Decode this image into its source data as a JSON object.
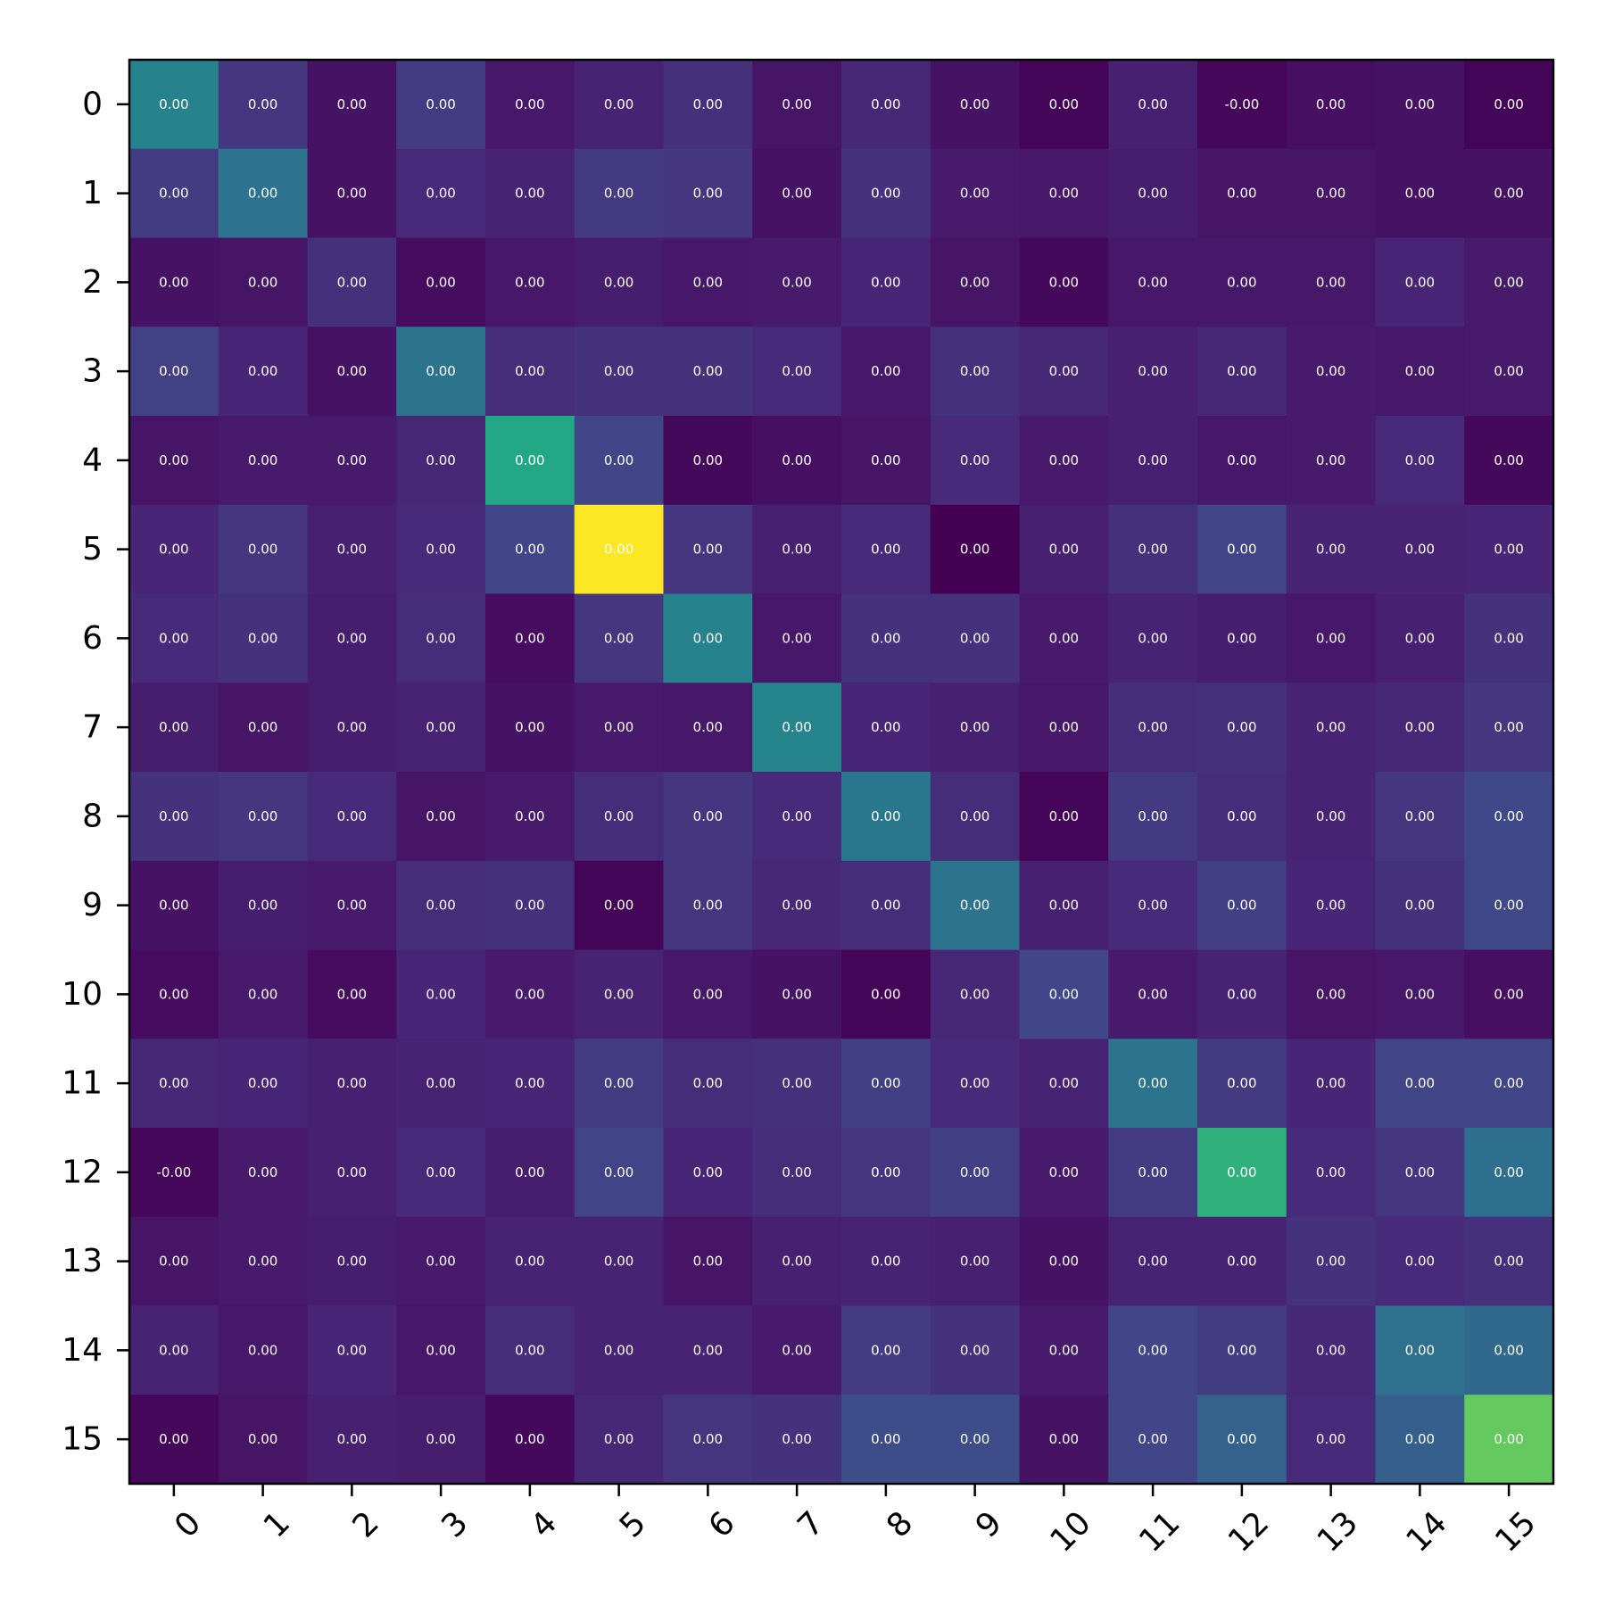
{
  "chart_data": {
    "type": "heatmap",
    "title": "",
    "xlabel": "",
    "ylabel": "",
    "colormap": "viridis",
    "x_categories": [
      "0",
      "1",
      "2",
      "3",
      "4",
      "5",
      "6",
      "7",
      "8",
      "9",
      "10",
      "11",
      "12",
      "13",
      "14",
      "15"
    ],
    "y_categories": [
      "0",
      "1",
      "2",
      "3",
      "4",
      "5",
      "6",
      "7",
      "8",
      "9",
      "10",
      "11",
      "12",
      "13",
      "14",
      "15"
    ],
    "intensity": [
      [
        0.55,
        0.2,
        0.06,
        0.22,
        0.08,
        0.12,
        0.17,
        0.07,
        0.14,
        0.06,
        0.01,
        0.11,
        0.02,
        0.05,
        0.06,
        0.01
      ],
      [
        0.22,
        0.47,
        0.06,
        0.15,
        0.12,
        0.21,
        0.2,
        0.06,
        0.18,
        0.09,
        0.08,
        0.1,
        0.07,
        0.07,
        0.06,
        0.06
      ],
      [
        0.06,
        0.07,
        0.17,
        0.04,
        0.08,
        0.1,
        0.08,
        0.09,
        0.13,
        0.07,
        0.03,
        0.08,
        0.08,
        0.08,
        0.13,
        0.09
      ],
      [
        0.24,
        0.13,
        0.06,
        0.48,
        0.16,
        0.18,
        0.18,
        0.15,
        0.08,
        0.17,
        0.14,
        0.11,
        0.14,
        0.09,
        0.08,
        0.09
      ],
      [
        0.07,
        0.09,
        0.09,
        0.14,
        0.75,
        0.26,
        0.03,
        0.05,
        0.07,
        0.15,
        0.09,
        0.11,
        0.08,
        0.09,
        0.15,
        0.03
      ],
      [
        0.13,
        0.2,
        0.11,
        0.15,
        0.26,
        1.0,
        0.19,
        0.11,
        0.15,
        0.0,
        0.11,
        0.17,
        0.25,
        0.12,
        0.12,
        0.13
      ],
      [
        0.15,
        0.18,
        0.1,
        0.16,
        0.04,
        0.2,
        0.55,
        0.08,
        0.18,
        0.18,
        0.09,
        0.12,
        0.1,
        0.08,
        0.11,
        0.18
      ],
      [
        0.1,
        0.07,
        0.1,
        0.12,
        0.06,
        0.09,
        0.08,
        0.56,
        0.13,
        0.11,
        0.08,
        0.16,
        0.17,
        0.12,
        0.14,
        0.2
      ],
      [
        0.18,
        0.2,
        0.15,
        0.07,
        0.09,
        0.16,
        0.2,
        0.15,
        0.5,
        0.16,
        0.01,
        0.21,
        0.16,
        0.12,
        0.2,
        0.27
      ],
      [
        0.06,
        0.1,
        0.09,
        0.16,
        0.17,
        0.01,
        0.2,
        0.14,
        0.16,
        0.48,
        0.11,
        0.15,
        0.23,
        0.13,
        0.18,
        0.27
      ],
      [
        0.04,
        0.09,
        0.04,
        0.13,
        0.09,
        0.12,
        0.08,
        0.06,
        0.01,
        0.14,
        0.26,
        0.09,
        0.12,
        0.07,
        0.08,
        0.05
      ],
      [
        0.14,
        0.13,
        0.11,
        0.12,
        0.13,
        0.22,
        0.16,
        0.17,
        0.23,
        0.15,
        0.12,
        0.48,
        0.21,
        0.13,
        0.25,
        0.26
      ],
      [
        0.02,
        0.09,
        0.11,
        0.15,
        0.1,
        0.25,
        0.13,
        0.16,
        0.2,
        0.23,
        0.09,
        0.22,
        0.78,
        0.15,
        0.2,
        0.45
      ],
      [
        0.07,
        0.09,
        0.1,
        0.09,
        0.12,
        0.12,
        0.07,
        0.11,
        0.12,
        0.11,
        0.06,
        0.12,
        0.12,
        0.18,
        0.15,
        0.17
      ],
      [
        0.12,
        0.08,
        0.13,
        0.08,
        0.16,
        0.12,
        0.12,
        0.09,
        0.22,
        0.18,
        0.09,
        0.26,
        0.22,
        0.14,
        0.46,
        0.42
      ],
      [
        0.02,
        0.07,
        0.11,
        0.1,
        0.03,
        0.14,
        0.19,
        0.18,
        0.29,
        0.29,
        0.06,
        0.26,
        0.39,
        0.15,
        0.38,
        0.88
      ]
    ],
    "cell_labels": [
      [
        "0.00",
        "0.00",
        "0.00",
        "0.00",
        "0.00",
        "0.00",
        "0.00",
        "0.00",
        "0.00",
        "0.00",
        "0.00",
        "0.00",
        "-0.00",
        "0.00",
        "0.00",
        "0.00"
      ],
      [
        "0.00",
        "0.00",
        "0.00",
        "0.00",
        "0.00",
        "0.00",
        "0.00",
        "0.00",
        "0.00",
        "0.00",
        "0.00",
        "0.00",
        "0.00",
        "0.00",
        "0.00",
        "0.00"
      ],
      [
        "0.00",
        "0.00",
        "0.00",
        "0.00",
        "0.00",
        "0.00",
        "0.00",
        "0.00",
        "0.00",
        "0.00",
        "0.00",
        "0.00",
        "0.00",
        "0.00",
        "0.00",
        "0.00"
      ],
      [
        "0.00",
        "0.00",
        "0.00",
        "0.00",
        "0.00",
        "0.00",
        "0.00",
        "0.00",
        "0.00",
        "0.00",
        "0.00",
        "0.00",
        "0.00",
        "0.00",
        "0.00",
        "0.00"
      ],
      [
        "0.00",
        "0.00",
        "0.00",
        "0.00",
        "0.00",
        "0.00",
        "0.00",
        "0.00",
        "0.00",
        "0.00",
        "0.00",
        "0.00",
        "0.00",
        "0.00",
        "0.00",
        "0.00"
      ],
      [
        "0.00",
        "0.00",
        "0.00",
        "0.00",
        "0.00",
        "0.00",
        "0.00",
        "0.00",
        "0.00",
        "0.00",
        "0.00",
        "0.00",
        "0.00",
        "0.00",
        "0.00",
        "0.00"
      ],
      [
        "0.00",
        "0.00",
        "0.00",
        "0.00",
        "0.00",
        "0.00",
        "0.00",
        "0.00",
        "0.00",
        "0.00",
        "0.00",
        "0.00",
        "0.00",
        "0.00",
        "0.00",
        "0.00"
      ],
      [
        "0.00",
        "0.00",
        "0.00",
        "0.00",
        "0.00",
        "0.00",
        "0.00",
        "0.00",
        "0.00",
        "0.00",
        "0.00",
        "0.00",
        "0.00",
        "0.00",
        "0.00",
        "0.00"
      ],
      [
        "0.00",
        "0.00",
        "0.00",
        "0.00",
        "0.00",
        "0.00",
        "0.00",
        "0.00",
        "0.00",
        "0.00",
        "0.00",
        "0.00",
        "0.00",
        "0.00",
        "0.00",
        "0.00"
      ],
      [
        "0.00",
        "0.00",
        "0.00",
        "0.00",
        "0.00",
        "0.00",
        "0.00",
        "0.00",
        "0.00",
        "0.00",
        "0.00",
        "0.00",
        "0.00",
        "0.00",
        "0.00",
        "0.00"
      ],
      [
        "0.00",
        "0.00",
        "0.00",
        "0.00",
        "0.00",
        "0.00",
        "0.00",
        "0.00",
        "0.00",
        "0.00",
        "0.00",
        "0.00",
        "0.00",
        "0.00",
        "0.00",
        "0.00"
      ],
      [
        "0.00",
        "0.00",
        "0.00",
        "0.00",
        "0.00",
        "0.00",
        "0.00",
        "0.00",
        "0.00",
        "0.00",
        "0.00",
        "0.00",
        "0.00",
        "0.00",
        "0.00",
        "0.00"
      ],
      [
        "-0.00",
        "0.00",
        "0.00",
        "0.00",
        "0.00",
        "0.00",
        "0.00",
        "0.00",
        "0.00",
        "0.00",
        "0.00",
        "0.00",
        "0.00",
        "0.00",
        "0.00",
        "0.00"
      ],
      [
        "0.00",
        "0.00",
        "0.00",
        "0.00",
        "0.00",
        "0.00",
        "0.00",
        "0.00",
        "0.00",
        "0.00",
        "0.00",
        "0.00",
        "0.00",
        "0.00",
        "0.00",
        "0.00"
      ],
      [
        "0.00",
        "0.00",
        "0.00",
        "0.00",
        "0.00",
        "0.00",
        "0.00",
        "0.00",
        "0.00",
        "0.00",
        "0.00",
        "0.00",
        "0.00",
        "0.00",
        "0.00",
        "0.00"
      ],
      [
        "0.00",
        "0.00",
        "0.00",
        "0.00",
        "0.00",
        "0.00",
        "0.00",
        "0.00",
        "0.00",
        "0.00",
        "0.00",
        "0.00",
        "0.00",
        "0.00",
        "0.00",
        "0.00"
      ]
    ],
    "colorbar": false,
    "grid": false
  }
}
